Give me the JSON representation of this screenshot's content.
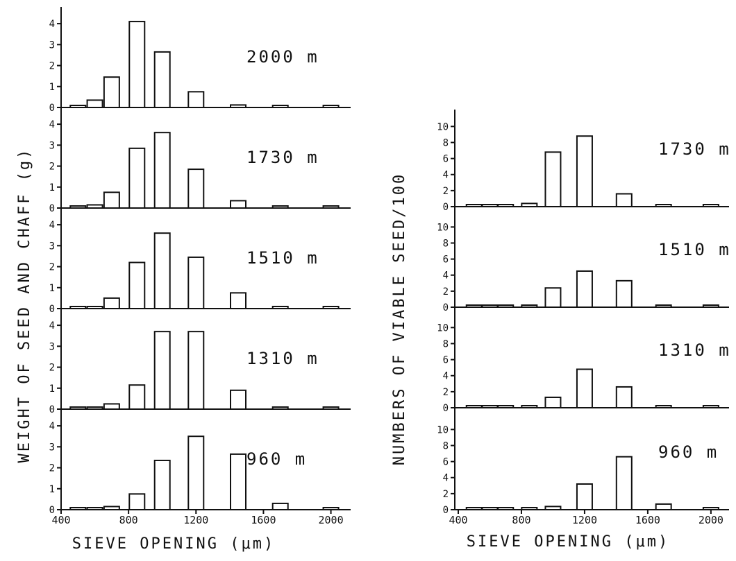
{
  "chart_data": [
    {
      "type": "bar",
      "ylabel": "WEIGHT OF SEED AND CHAFF (g)",
      "xlabel": "SIEVE OPENING (μm)",
      "xlim": [
        400,
        2150
      ],
      "x_ticks": [
        400,
        800,
        1200,
        1600,
        2000
      ],
      "ylim": [
        0,
        4.4
      ],
      "y_ticks": [
        0,
        1,
        2,
        3,
        4
      ],
      "x": [
        500,
        600,
        700,
        850,
        1000,
        1200,
        1450,
        1700,
        2000
      ],
      "panels": [
        {
          "label": "2000 m",
          "values": [
            0.03,
            0.35,
            1.45,
            4.1,
            2.65,
            0.75,
            0.12,
            0.08,
            0.05
          ]
        },
        {
          "label": "1730 m",
          "values": [
            0.03,
            0.15,
            0.75,
            2.85,
            3.6,
            1.85,
            0.35,
            0.05,
            0.05
          ]
        },
        {
          "label": "1510 m",
          "values": [
            0.03,
            0.07,
            0.5,
            2.2,
            3.6,
            2.45,
            0.75,
            0.1,
            0.07
          ]
        },
        {
          "label": "1310 m",
          "values": [
            0.03,
            0.05,
            0.25,
            1.15,
            3.7,
            3.7,
            0.9,
            0.08,
            0.07
          ]
        },
        {
          "label": "960 m",
          "values": [
            0.02,
            0.05,
            0.15,
            0.75,
            2.35,
            3.5,
            2.65,
            0.3,
            0.05
          ]
        }
      ]
    },
    {
      "type": "bar",
      "ylabel": "NUMBERS OF VIABLE SEED/100",
      "xlabel": "SIEVE OPENING (μm)",
      "xlim": [
        400,
        2150
      ],
      "x_ticks": [
        400,
        800,
        1200,
        1600,
        2000
      ],
      "ylim": [
        0,
        11.5
      ],
      "y_ticks": [
        0,
        2,
        4,
        6,
        8,
        10
      ],
      "x": [
        500,
        600,
        700,
        850,
        1000,
        1200,
        1450,
        1700,
        2000
      ],
      "panels": [
        {
          "label": "1730 m",
          "values": [
            0.1,
            0.1,
            0.1,
            0.4,
            6.8,
            8.8,
            1.6,
            0.15,
            0.2
          ]
        },
        {
          "label": "1510 m",
          "values": [
            0.1,
            0.1,
            0.1,
            0.15,
            2.4,
            4.5,
            3.3,
            0.2,
            0.25
          ]
        },
        {
          "label": "1310 m",
          "values": [
            0.1,
            0.1,
            0.1,
            0.2,
            1.3,
            4.8,
            2.6,
            0.15,
            0.2
          ]
        },
        {
          "label": "960 m",
          "values": [
            0.1,
            0.1,
            0.1,
            0.15,
            0.4,
            3.2,
            6.6,
            0.7,
            0.2
          ]
        }
      ]
    }
  ]
}
